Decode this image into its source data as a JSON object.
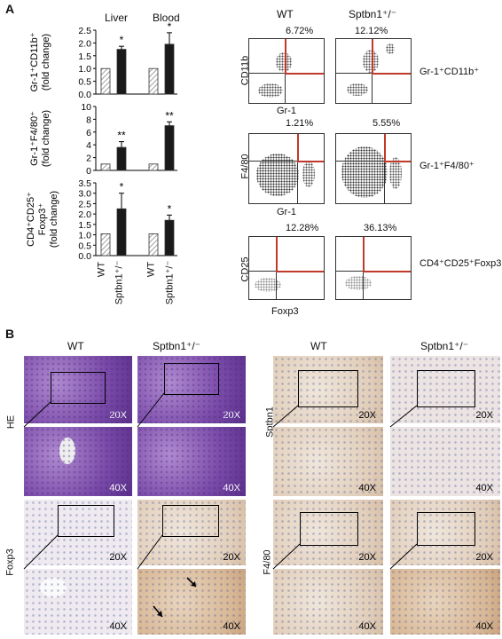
{
  "panelA": {
    "letter": "A",
    "headers": {
      "liver": "Liver",
      "blood": "Blood"
    },
    "charts": [
      {
        "ylabel1": "Gr-1⁺CD11b⁺",
        "ylabel2": "(fold change)",
        "ticks": [
          "2.5",
          "2.0",
          "1.5",
          "1.0",
          "0.5",
          "0.0"
        ],
        "ymax": 2.5,
        "values": [
          1.0,
          1.75,
          1.0,
          1.95
        ],
        "errors": [
          0,
          0.12,
          0,
          0.45
        ],
        "stars": [
          "",
          "*",
          "",
          "*"
        ]
      },
      {
        "ylabel1": "Gr-1⁺F4/80⁺",
        "ylabel2": "(fold change)",
        "ticks": [
          "10",
          "8",
          "6",
          "4",
          "2",
          "0"
        ],
        "ymax": 10,
        "values": [
          1.0,
          3.6,
          1.0,
          7.0
        ],
        "errors": [
          0,
          0.9,
          0,
          0.6
        ],
        "stars": [
          "",
          "**",
          "",
          "**"
        ]
      },
      {
        "ylabel1": "CD4⁺CD25⁺",
        "ylabel1b": "Foxp3⁺",
        "ylabel2": "(fold change)",
        "ticks": [
          "3.5",
          "3.0",
          "2.5",
          "2.0",
          "1.5",
          "1.0",
          "0.5",
          "0.0"
        ],
        "ymax": 3.5,
        "values": [
          1.05,
          2.25,
          1.05,
          1.7
        ],
        "errors": [
          0,
          0.75,
          0,
          0.25
        ],
        "stars": [
          "",
          "*",
          "",
          "*"
        ]
      }
    ],
    "xlabels": [
      "WT",
      "Sptbn1⁺/⁻",
      "WT",
      "Sptbn1⁺/⁻"
    ],
    "flow": {
      "col_wt": "WT",
      "col_mut": "Sptbn1⁺/⁻",
      "rows": [
        {
          "ylabel": "CD11b",
          "xlabel": "Gr-1",
          "pct_wt": "6.72%",
          "pct_mut": "12.12%",
          "label": "Gr-1⁺CD11b⁺"
        },
        {
          "ylabel": "F4/80",
          "xlabel": "Gr-1",
          "pct_wt": "1.21%",
          "pct_mut": "5.55%",
          "label": "Gr-1⁺F4/80⁺"
        },
        {
          "ylabel": "CD25",
          "xlabel": "Foxp3",
          "pct_wt": "12.28%",
          "pct_mut": "36.13%",
          "label": "CD4⁺CD25⁺Foxp3⁺"
        }
      ]
    }
  },
  "panelB": {
    "letter": "B",
    "col_wt": "WT",
    "col_mut": "Sptbn1⁺/⁻",
    "rows_left": [
      "HE",
      "Foxp3"
    ],
    "rows_right": [
      "Sptbn1",
      "F4/80"
    ],
    "mag_low": "20X",
    "mag_high": "40X"
  }
}
